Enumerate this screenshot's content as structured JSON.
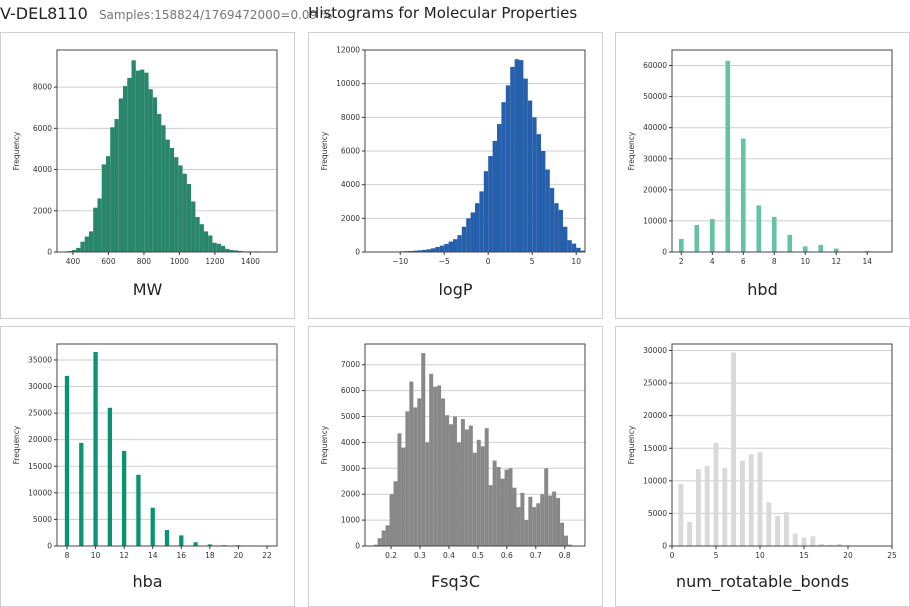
{
  "header": {
    "dataset": "V-DEL8110",
    "samples": "Samples:158824/1769472000=0.09 %",
    "title": "Histograms for Molecular Properties"
  },
  "chart_data": [
    {
      "type": "bar",
      "title": "MW",
      "ylabel": "Frequency",
      "color": "#2a866a",
      "bin_start": 370,
      "bin_width": 24,
      "bar_frac": 1,
      "values": [
        50,
        100,
        200,
        500,
        750,
        1000,
        2150,
        2600,
        4250,
        4650,
        6050,
        6450,
        7450,
        8050,
        8450,
        9300,
        8800,
        8850,
        8700,
        7900,
        7500,
        6700,
        6150,
        5450,
        5050,
        4600,
        4200,
        3800,
        3300,
        2450,
        1700,
        1350,
        1000,
        800,
        450,
        400,
        300,
        150,
        100,
        80,
        50,
        30,
        30,
        20,
        30,
        10
      ],
      "xlim": [
        310,
        1550
      ],
      "ylim": [
        0,
        9800
      ],
      "xticks": [
        400,
        600,
        800,
        1000,
        1200,
        1400
      ],
      "yticks": [
        0,
        2000,
        4000,
        6000,
        8000
      ]
    },
    {
      "type": "bar",
      "title": "logP",
      "ylabel": "Frequency",
      "color": "#2660ad",
      "bin_start": -12.5,
      "bin_width": 0.5,
      "bar_frac": 1,
      "values": [
        30,
        30,
        30,
        30,
        30,
        40,
        50,
        60,
        80,
        100,
        130,
        160,
        220,
        300,
        380,
        480,
        620,
        760,
        1000,
        1500,
        2000,
        2350,
        2900,
        3600,
        4800,
        5700,
        6600,
        7600,
        8900,
        9900,
        11000,
        11450,
        11400,
        10300,
        9000,
        8000,
        7000,
        6000,
        4900,
        3800,
        2900,
        2500,
        1500,
        700,
        500,
        250,
        80
      ],
      "xlim": [
        -14,
        11
      ],
      "ylim": [
        0,
        12000
      ],
      "xticks": [
        -10,
        -5,
        0,
        5,
        10
      ],
      "yticks": [
        0,
        2000,
        4000,
        6000,
        8000,
        10000,
        12000
      ]
    },
    {
      "type": "bar",
      "title": "hbd",
      "ylabel": "Frequency",
      "color": "#66c2a5",
      "discrete": true,
      "bar_frac": 0.3,
      "x": [
        2,
        3,
        4,
        5,
        6,
        7,
        8,
        9,
        10,
        11,
        12,
        14,
        15
      ],
      "values": [
        4200,
        8700,
        10600,
        61500,
        36500,
        15000,
        11300,
        5500,
        1800,
        2300,
        1100,
        300,
        200
      ],
      "xlim": [
        1.4,
        15.6
      ],
      "ylim": [
        0,
        65000
      ],
      "xticks": [
        2,
        4,
        6,
        8,
        10,
        12,
        14
      ],
      "yticks": [
        0,
        10000,
        20000,
        30000,
        40000,
        50000,
        60000
      ]
    },
    {
      "type": "bar",
      "title": "hba",
      "ylabel": "Frequency",
      "color": "#079473",
      "discrete": true,
      "bar_frac": 0.3,
      "x": [
        8,
        9,
        10,
        11,
        12,
        13,
        14,
        15,
        16,
        17,
        18,
        19,
        20,
        21,
        22
      ],
      "values": [
        32000,
        19400,
        36500,
        26000,
        17900,
        13400,
        7200,
        3000,
        2000,
        700,
        300,
        150,
        150,
        100,
        80
      ],
      "xlim": [
        7.3,
        22.7
      ],
      "ylim": [
        0,
        38000
      ],
      "xticks": [
        8,
        10,
        12,
        14,
        16,
        18,
        20,
        22
      ],
      "yticks": [
        0,
        5000,
        10000,
        15000,
        20000,
        25000,
        30000,
        35000
      ]
    },
    {
      "type": "bar",
      "title": "Fsq3C",
      "ylabel": "Frequency",
      "color": "#888888",
      "bin_start": 0.14,
      "bin_width": 0.0137,
      "bar_frac": 1,
      "values": [
        50,
        300,
        600,
        800,
        2000,
        2500,
        4350,
        3800,
        5200,
        6350,
        5350,
        5700,
        7450,
        4000,
        6650,
        6150,
        6200,
        5700,
        5050,
        4700,
        5000,
        4000,
        4900,
        4500,
        4650,
        3600,
        4100,
        3850,
        4550,
        2350,
        3300,
        3050,
        2600,
        2950,
        3000,
        2250,
        1500,
        2050,
        1000,
        1900,
        1500,
        1650,
        2000,
        3000,
        1950,
        2100,
        1850,
        900,
        400,
        50,
        20
      ],
      "xlim": [
        0.11,
        0.87
      ],
      "ylim": [
        0,
        7800
      ],
      "xticks": [
        0.2,
        0.3,
        0.4,
        0.5,
        0.6,
        0.7,
        0.8
      ],
      "yticks": [
        0,
        1000,
        2000,
        3000,
        4000,
        5000,
        6000,
        7000
      ]
    },
    {
      "type": "bar",
      "title": "num_rotatable_bonds",
      "ylabel": "Frequency",
      "color": "#d9d9d9",
      "discrete": true,
      "bar_frac": 0.55,
      "x": [
        1,
        2,
        3,
        4,
        5,
        6,
        7,
        8,
        9,
        10,
        11,
        12,
        13,
        14,
        15,
        16,
        17,
        18,
        19,
        20,
        21,
        22
      ],
      "values": [
        9500,
        3700,
        11800,
        12300,
        15800,
        12000,
        29700,
        13100,
        14100,
        14400,
        6700,
        4600,
        5200,
        1900,
        1300,
        1500,
        300,
        200,
        300,
        100,
        50,
        50
      ],
      "xlim": [
        0,
        25
      ],
      "ylim": [
        0,
        31000
      ],
      "xticks": [
        0,
        5,
        10,
        15,
        20,
        25
      ],
      "yticks": [
        0,
        5000,
        10000,
        15000,
        20000,
        25000,
        30000
      ]
    }
  ]
}
